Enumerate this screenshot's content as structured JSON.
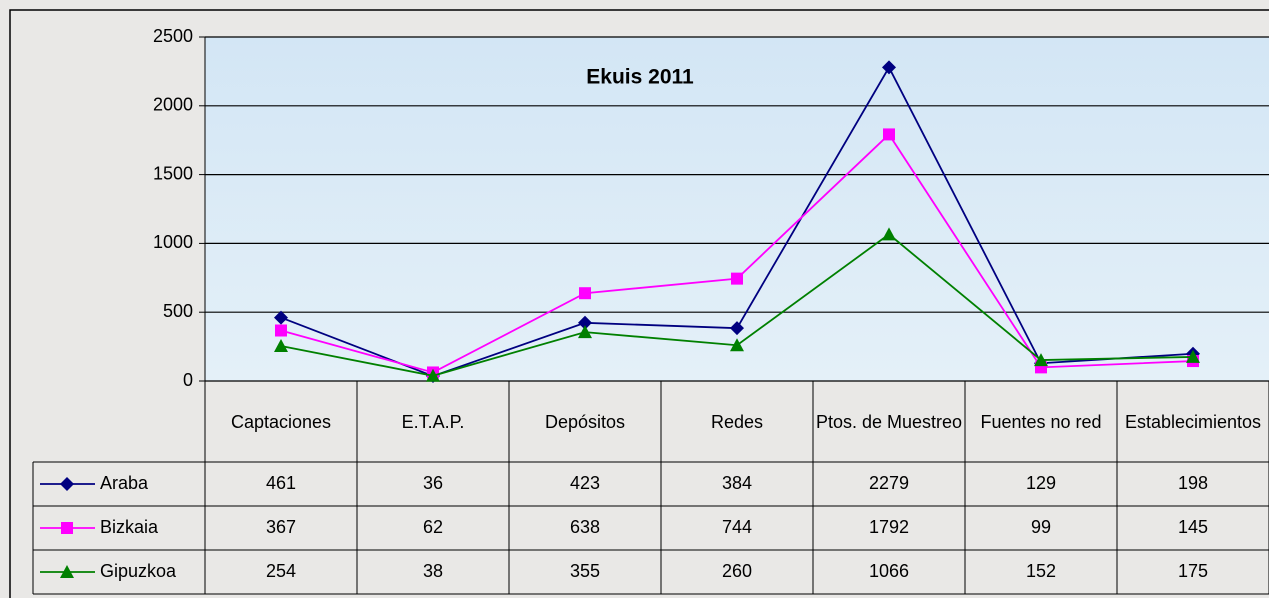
{
  "chart_data": {
    "type": "line",
    "title": "Ekuis 2011",
    "categories": [
      "Captaciones",
      "E.T.A.P.",
      "Depósitos",
      "Redes",
      "Ptos. de Muestreo",
      "Fuentes no red",
      "Establecimientos"
    ],
    "series": [
      {
        "name": "Araba",
        "color": "#000080",
        "marker": "diamond",
        "values": [
          461,
          36,
          423,
          384,
          2279,
          129,
          198
        ]
      },
      {
        "name": "Bizkaia",
        "color": "#ff00ff",
        "marker": "square",
        "values": [
          367,
          62,
          638,
          744,
          1792,
          99,
          145
        ]
      },
      {
        "name": "Gipuzkoa",
        "color": "#008000",
        "marker": "triangle",
        "values": [
          254,
          38,
          355,
          260,
          1066,
          152,
          175
        ]
      }
    ],
    "ylim": [
      0,
      2500
    ],
    "yticks": [
      0,
      500,
      1000,
      1500,
      2000,
      2500
    ],
    "grid": true
  }
}
